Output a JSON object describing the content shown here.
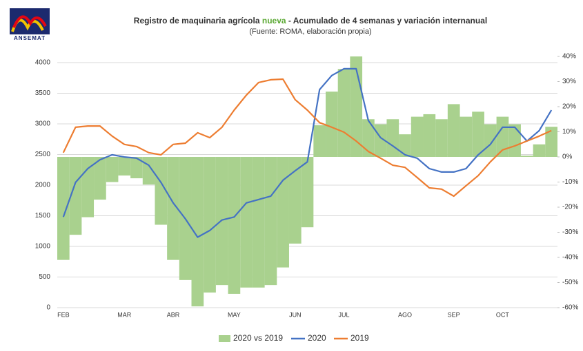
{
  "logo": {
    "text": "ANSEMAT"
  },
  "chart_data": {
    "type": "bar_line",
    "title_parts": [
      "Registro de maquinaria agrícola ",
      "nueva",
      " - Acumulado de 4 semanas y variación internanual"
    ],
    "subtitle": "(Fuente: ROMA, elaboración propia)",
    "categories": [
      "FEB",
      null,
      null,
      null,
      null,
      "MAR",
      null,
      null,
      null,
      "ABR",
      null,
      null,
      null,
      null,
      "MAY",
      null,
      null,
      null,
      null,
      "JUN",
      null,
      null,
      null,
      "JUL",
      null,
      null,
      null,
      null,
      "AGO",
      null,
      null,
      null,
      "SEP",
      null,
      null,
      null,
      "OCT",
      null,
      null,
      null,
      null
    ],
    "series": [
      {
        "name": "2020 vs 2019",
        "type": "bar",
        "axis": "y2",
        "color": "#a9d18e",
        "values": [
          -41,
          -31,
          -24,
          -17,
          -10,
          -7.4,
          -8.5,
          -11,
          -27,
          -41,
          -49,
          -59.5,
          -54,
          -51,
          -54.5,
          -52,
          -52,
          -51,
          -44,
          -34.5,
          -28,
          12.6,
          26,
          35,
          40,
          15,
          13,
          15,
          9,
          16,
          17,
          15,
          21,
          16,
          18,
          13,
          16,
          13,
          0.5,
          5,
          12
        ]
      },
      {
        "name": "2020",
        "type": "line",
        "color": "#4472c4",
        "values": [
          1480,
          2045,
          2270,
          2415,
          2495,
          2460,
          2440,
          2325,
          2045,
          1710,
          1450,
          1150,
          1260,
          1430,
          1480,
          1710,
          1765,
          1820,
          2080,
          2235,
          2380,
          3560,
          3790,
          3900,
          3900,
          3055,
          2775,
          2640,
          2495,
          2440,
          2270,
          2215,
          2215,
          2270,
          2495,
          2665,
          2945,
          2945,
          2720,
          2890,
          3225
        ]
      },
      {
        "name": "2019",
        "type": "line",
        "color": "#ed7d31",
        "values": [
          2530,
          2945,
          2965,
          2965,
          2800,
          2665,
          2630,
          2530,
          2495,
          2665,
          2685,
          2855,
          2775,
          2945,
          3225,
          3470,
          3675,
          3720,
          3730,
          3395,
          3225,
          3020,
          2945,
          2865,
          2720,
          2550,
          2440,
          2325,
          2290,
          2125,
          1955,
          1935,
          1820,
          1990,
          2155,
          2380,
          2575,
          2640,
          2720,
          2800,
          2890
        ]
      }
    ],
    "ylim": [
      0,
      4000
    ],
    "yticks": [
      0,
      500,
      1000,
      1500,
      2000,
      2500,
      3000,
      3500,
      4000
    ],
    "y2lim": [
      -60,
      40
    ],
    "y2ticks": [
      {
        "value": -60,
        "label": "-60%"
      },
      {
        "value": -50,
        "label": "-50%"
      },
      {
        "value": -40,
        "label": "-40%"
      },
      {
        "value": -30,
        "label": "-30%"
      },
      {
        "value": -20,
        "label": "-20%"
      },
      {
        "value": -10,
        "label": "-10%"
      },
      {
        "value": 0,
        "label": "0%"
      },
      {
        "value": 10,
        "label": "10%"
      },
      {
        "value": 20,
        "label": "20%"
      },
      {
        "value": 30,
        "label": "30%"
      },
      {
        "value": 40,
        "label": "40%"
      }
    ],
    "grid": true,
    "legend": "bottom"
  }
}
